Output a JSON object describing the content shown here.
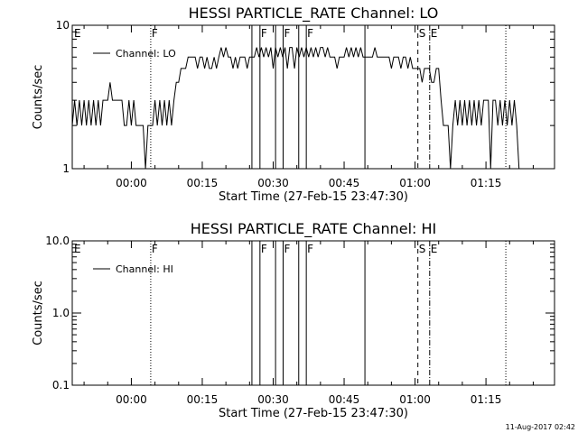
{
  "footer": {
    "timestamp": "11-Aug-2017 02:42"
  },
  "chart_data": [
    {
      "type": "line",
      "title": "HESSI PARTICLE_RATE Channel: LO",
      "xlabel": "Start Time (27-Feb-15 23:47:30)",
      "ylabel": "Counts/sec",
      "xaxis_unit": "minutes after 23:47:30",
      "xlim": [
        0,
        102
      ],
      "ylim": [
        1,
        10
      ],
      "yscale": "log",
      "yticks": [
        1,
        10
      ],
      "ytick_labels": [
        "1",
        "10"
      ],
      "xticks": [
        12.5,
        27.5,
        42.5,
        57.5,
        72.5,
        87.5
      ],
      "xtick_labels": [
        "00:00",
        "00:15",
        "00:30",
        "00:45",
        "01:00",
        "01:15"
      ],
      "legend": {
        "label": "Channel: LO",
        "placement": "top-left"
      },
      "series": [
        {
          "name": "Channel: LO",
          "x": [
            0,
            0.5,
            1,
            1.5,
            2,
            2.5,
            3,
            3.5,
            4,
            4.5,
            5,
            5.5,
            6,
            6.5,
            7,
            7.5,
            8,
            8.5,
            9,
            9.5,
            10,
            10.5,
            11,
            11.5,
            12,
            12.5,
            13,
            13.5,
            14,
            14.5,
            15,
            15.5,
            16,
            16.5,
            17,
            17.5,
            18,
            18.5,
            19,
            19.5,
            20,
            20.5,
            21,
            21.5,
            22,
            22.5,
            23,
            23.5,
            24,
            24.5,
            25,
            25.5,
            26,
            26.5,
            27,
            27.5,
            28,
            28.5,
            29,
            29.5,
            30,
            30.5,
            31,
            31.5,
            32,
            32.5,
            33,
            33.5,
            34,
            34.5,
            35,
            35.5,
            36,
            36.5,
            37,
            37.5,
            38,
            38.5,
            39,
            39.5,
            40,
            40.5,
            41,
            41.5,
            42,
            42.5,
            43,
            43.5,
            44,
            44.5,
            45,
            45.5,
            46,
            46.5,
            47,
            47.5,
            48,
            48.5,
            49,
            49.5,
            50,
            50.5,
            51,
            51.5,
            52,
            52.5,
            53,
            53.5,
            54,
            54.5,
            55,
            55.5,
            56,
            56.5,
            57,
            57.5,
            58,
            58.5,
            59,
            59.5,
            60,
            60.5,
            61,
            61.5,
            62,
            62.5,
            63,
            63.5,
            64,
            64.5,
            65,
            65.5,
            66,
            66.5,
            67,
            67.5,
            68,
            68.5,
            69,
            69.5,
            70,
            70.5,
            71,
            71.5,
            72,
            72.5,
            73,
            73.5,
            74,
            74.5,
            75,
            75.5,
            76,
            76.5,
            77,
            77.5,
            78,
            78.5,
            79,
            79.5,
            80,
            80.5,
            81,
            81.5,
            82,
            82.5,
            83,
            83.5,
            84,
            84.5,
            85,
            85.5,
            86,
            86.5,
            87,
            87.5,
            88,
            88.5,
            89,
            89.5,
            90,
            90.5,
            91,
            91.5,
            92,
            92.5,
            93,
            93.5,
            94,
            94.5
          ],
          "values": [
            2,
            3,
            2,
            3,
            2,
            3,
            2,
            3,
            2,
            3,
            2,
            3,
            2,
            3,
            3,
            3,
            4,
            3,
            3,
            3,
            3,
            3,
            2,
            2,
            3,
            2,
            3,
            2,
            2,
            2,
            2,
            1,
            2,
            2,
            2,
            3,
            2,
            3,
            2,
            3,
            2,
            3,
            2,
            3,
            4,
            4,
            5,
            5,
            5,
            6,
            6,
            6,
            6,
            5,
            6,
            6,
            5,
            6,
            5,
            5,
            6,
            5,
            6,
            7,
            6,
            7,
            6,
            6,
            5,
            6,
            5,
            6,
            6,
            6,
            5,
            6,
            6,
            6,
            7,
            6,
            7,
            6,
            7,
            6,
            7,
            5,
            7,
            6,
            7,
            6,
            7,
            5,
            7,
            7,
            5,
            7,
            6,
            7,
            6,
            7,
            6,
            7,
            6,
            7,
            6,
            7,
            7,
            6,
            7,
            6,
            6,
            6,
            5,
            6,
            6,
            6,
            7,
            6,
            7,
            6,
            7,
            6,
            7,
            6,
            6,
            6,
            6,
            6,
            7,
            6,
            6,
            6,
            6,
            6,
            6,
            5,
            6,
            6,
            6,
            5,
            6,
            6,
            5,
            6,
            5,
            5,
            5,
            5,
            4,
            5,
            5,
            5,
            4,
            4,
            5,
            5,
            3,
            2,
            2,
            2,
            1,
            2,
            3,
            2,
            3,
            2,
            3,
            2,
            3,
            2,
            3,
            2,
            3,
            2,
            3,
            3,
            3,
            1,
            3,
            3,
            2,
            3,
            2,
            3,
            2,
            3,
            2,
            3,
            2,
            1
          ]
        }
      ],
      "markers": [
        {
          "label": "E",
          "x": 0.2,
          "style": "none"
        },
        {
          "label": "F",
          "x": 16.6,
          "style": "dotted"
        },
        {
          "label": "",
          "x": 38.0,
          "style": "solid"
        },
        {
          "label": "F",
          "x": 39.7,
          "style": "solid"
        },
        {
          "label": "",
          "x": 43.0,
          "style": "solid"
        },
        {
          "label": "F",
          "x": 44.6,
          "style": "solid"
        },
        {
          "label": "",
          "x": 47.9,
          "style": "solid"
        },
        {
          "label": "F",
          "x": 49.5,
          "style": "solid"
        },
        {
          "label": "",
          "x": 61.9,
          "style": "solid"
        },
        {
          "label": "S",
          "x": 73.1,
          "style": "dashed"
        },
        {
          "label": "E",
          "x": 75.6,
          "style": "dashdot"
        },
        {
          "label": "",
          "x": 91.7,
          "style": "dotted"
        }
      ]
    },
    {
      "type": "line",
      "title": "HESSI PARTICLE_RATE Channel: HI",
      "xlabel": "Start Time (27-Feb-15 23:47:30)",
      "ylabel": "Counts/sec",
      "xaxis_unit": "minutes after 23:47:30",
      "xlim": [
        0,
        102
      ],
      "ylim": [
        0.1,
        10.0
      ],
      "yscale": "log",
      "yticks": [
        0.1,
        1.0,
        10.0
      ],
      "ytick_labels": [
        "0.1",
        "1.0",
        "10.0"
      ],
      "xticks": [
        12.5,
        27.5,
        42.5,
        57.5,
        72.5,
        87.5
      ],
      "xtick_labels": [
        "00:00",
        "00:15",
        "00:30",
        "00:45",
        "01:00",
        "01:15"
      ],
      "legend": {
        "label": "Channel: HI",
        "placement": "top-left"
      },
      "series": [
        {
          "name": "Channel: HI",
          "x": [],
          "values": []
        }
      ],
      "markers": [
        {
          "label": "E",
          "x": 0.2,
          "style": "none"
        },
        {
          "label": "F",
          "x": 16.6,
          "style": "dotted"
        },
        {
          "label": "",
          "x": 38.0,
          "style": "solid"
        },
        {
          "label": "F",
          "x": 39.7,
          "style": "solid"
        },
        {
          "label": "",
          "x": 43.0,
          "style": "solid"
        },
        {
          "label": "F",
          "x": 44.6,
          "style": "solid"
        },
        {
          "label": "",
          "x": 47.9,
          "style": "solid"
        },
        {
          "label": "F",
          "x": 49.5,
          "style": "solid"
        },
        {
          "label": "",
          "x": 61.9,
          "style": "solid"
        },
        {
          "label": "S",
          "x": 73.1,
          "style": "dashed"
        },
        {
          "label": "E",
          "x": 75.6,
          "style": "dashdot"
        },
        {
          "label": "",
          "x": 91.7,
          "style": "dotted"
        }
      ]
    }
  ]
}
